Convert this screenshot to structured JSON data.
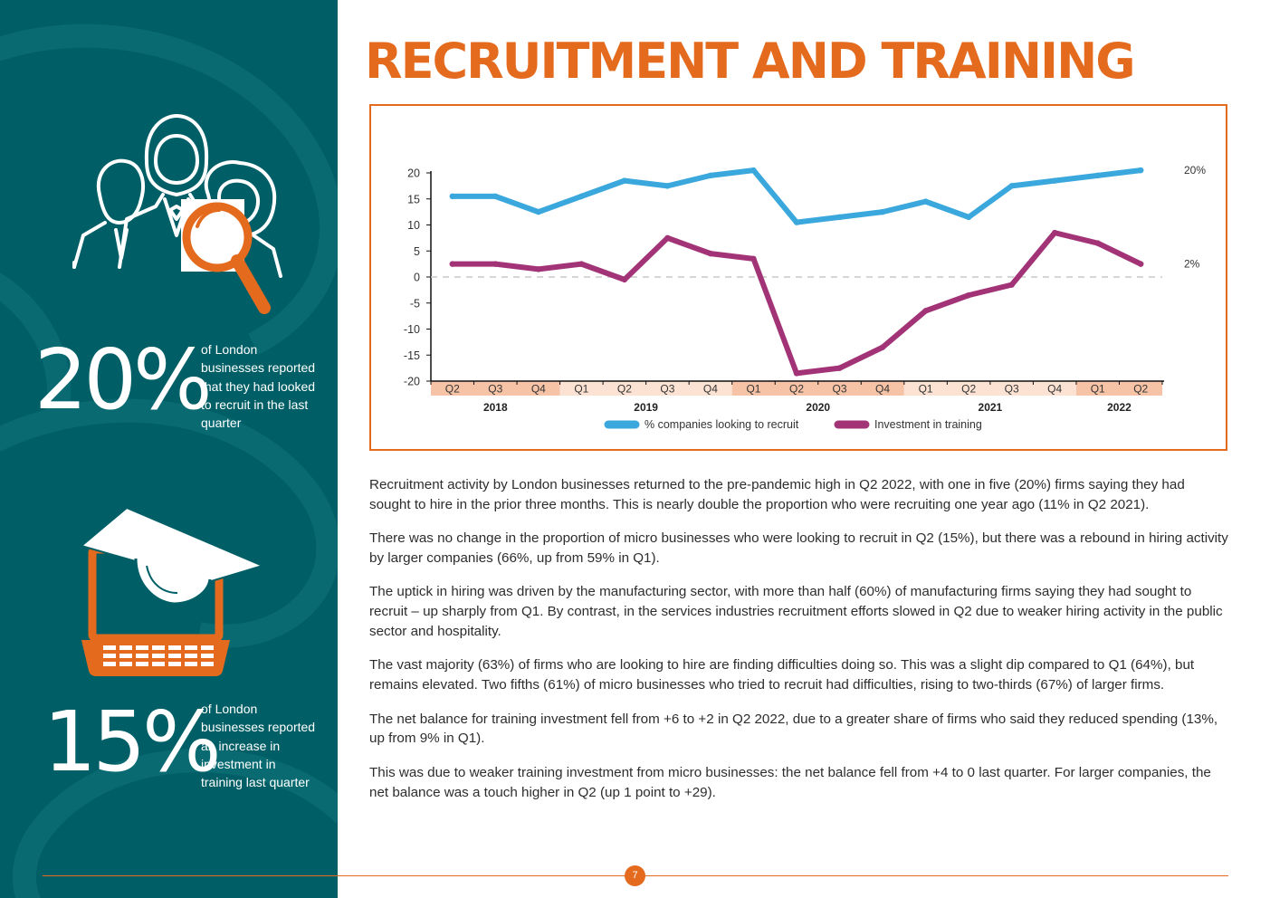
{
  "page": {
    "title": "RECRUITMENT AND TRAINING",
    "page_number": "7"
  },
  "sidebar": {
    "stat_recruit": {
      "value": "20%",
      "lines": [
        "of London",
        "businesses reported",
        "that they had looked",
        "to recruit in the last",
        "quarter"
      ]
    },
    "stat_training": {
      "value": "15%",
      "lines": [
        "of London",
        "businesses reported",
        "an increase in",
        "investment in",
        "training last quarter"
      ]
    },
    "icons": [
      "people-magnifier-icon",
      "laptop-graduation-cap-icon"
    ]
  },
  "colors": {
    "sidebar": "#005f66",
    "accent": "#e46a1e",
    "recruit_line": "#3aa8dd",
    "training_line": "#a33377",
    "band_dark": "#f6c3a6",
    "band_light": "#fbe2d3"
  },
  "chart_data": {
    "type": "line",
    "x": [
      "Q2",
      "Q3",
      "Q4",
      "Q1",
      "Q2",
      "Q3",
      "Q4",
      "Q1",
      "Q2",
      "Q3",
      "Q4",
      "Q1",
      "Q2",
      "Q3",
      "Q4",
      "Q1",
      "Q2"
    ],
    "year_groups": [
      {
        "label": "2018",
        "quarters": [
          "Q2",
          "Q3",
          "Q4"
        ]
      },
      {
        "label": "2019",
        "quarters": [
          "Q1",
          "Q2",
          "Q3",
          "Q4"
        ]
      },
      {
        "label": "2020",
        "quarters": [
          "Q1",
          "Q2",
          "Q3",
          "Q4"
        ]
      },
      {
        "label": "2021",
        "quarters": [
          "Q1",
          "Q2",
          "Q3",
          "Q4"
        ]
      },
      {
        "label": "2022",
        "quarters": [
          "Q1",
          "Q2"
        ]
      }
    ],
    "series": [
      {
        "name": "% companies looking to recruit",
        "color": "#3aa8dd",
        "end_label": "20%",
        "values": [
          15.5,
          15.5,
          12.5,
          15.5,
          18.5,
          17.5,
          19.5,
          20.5,
          10.5,
          11.5,
          12.5,
          14.5,
          11.5,
          17.5,
          18.5,
          19.5,
          20.5
        ]
      },
      {
        "name": "Investment in training",
        "color": "#a33377",
        "end_label": "2%",
        "values": [
          2.5,
          2.5,
          1.5,
          2.5,
          -0.5,
          7.5,
          4.5,
          3.5,
          -18.5,
          -17.5,
          -13.5,
          -6.5,
          -3.5,
          -1.5,
          8.5,
          6.5,
          2.5
        ]
      }
    ],
    "ylim": [
      -20,
      20
    ],
    "yticks": [
      "20",
      "15",
      "10",
      "5",
      "0",
      "-5",
      "-10",
      "-15",
      "-20"
    ],
    "zero_line": "dashed",
    "grid": false,
    "legend_position": "bottom"
  },
  "body": {
    "paragraphs": [
      "Recruitment activity by London businesses returned to the pre-pandemic high in Q2 2022, with one in five (20%) firms saying they had sought to hire in the prior three months. This is nearly double the proportion who were recruiting one year ago (11% in Q2 2021).",
      "There was no change in the proportion of micro businesses who were looking to recruit in Q2 (15%), but there was a rebound in hiring activity by larger companies (66%, up from 59% in Q1).",
      "The uptick in hiring was driven by the manufacturing sector, with more than half (60%) of manufacturing firms saying they had sought to recruit – up sharply from Q1. By contrast, in the services industries recruitment efforts slowed in Q2 due to weaker hiring activity in the public sector and hospitality.",
      "The vast majority (63%) of firms who are looking to hire are finding difficulties doing so. This was a slight dip compared to Q1 (64%), but remains elevated. Two fifths (61%) of micro businesses who tried to recruit had difficulties, rising to two-thirds (67%) of larger firms.",
      "The net balance for training investment fell from +6 to +2 in Q2 2022, due to a greater share of firms who said they reduced spending (13%, up from 9% in Q1).",
      "This was due to weaker training investment from micro businesses: the net balance fell from +4 to 0 last quarter. For larger companies, the net balance was a touch higher in Q2 (up 1 point to +29)."
    ]
  }
}
